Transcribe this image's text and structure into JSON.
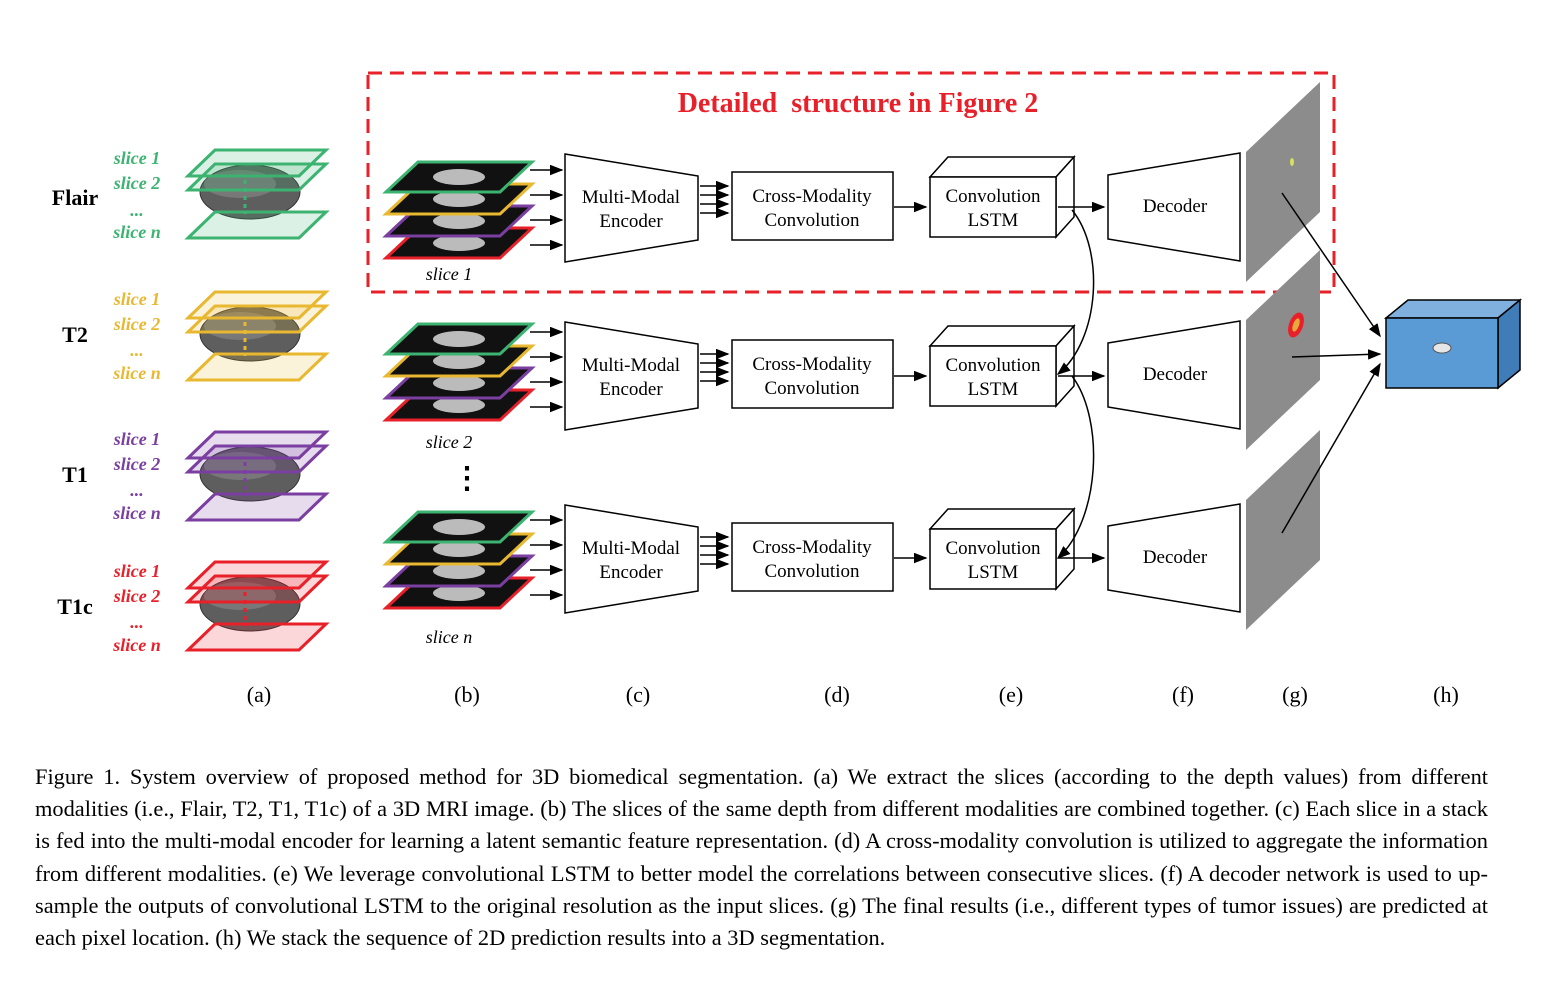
{
  "figure_title": "Detailed  structure in Figure 2",
  "modalities": [
    {
      "name": "Flair",
      "color": "#3cb371",
      "slices": [
        "slice 1",
        "slice 2",
        "...",
        "slice n"
      ]
    },
    {
      "name": "T2",
      "color": "#e8b830",
      "slices": [
        "slice 1",
        "slice 2",
        "...",
        "slice n"
      ]
    },
    {
      "name": "T1",
      "color": "#7a3fa0",
      "slices": [
        "slice 1",
        "slice 2",
        "...",
        "slice n"
      ]
    },
    {
      "name": "T1c",
      "color": "#e8202a",
      "slices": [
        "slice 1",
        "slice 2",
        "...",
        "slice n"
      ]
    }
  ],
  "stack_captions": [
    "slice 1",
    "slice 2",
    "slice n"
  ],
  "stack_ellipsis": "⋮",
  "encoder_label": [
    "Multi-Modal",
    "Encoder"
  ],
  "crossmod_label": [
    "Cross-Modality",
    "Convolution"
  ],
  "lstm_label": [
    "Convolution",
    "LSTM"
  ],
  "decoder_label": "Decoder",
  "panel_labels": [
    "(a)",
    "(b)",
    "(c)",
    "(d)",
    "(e)",
    "(f)",
    "(g)",
    "(h)"
  ],
  "colors": {
    "dash_box": "#e8202a",
    "cube": "#5b9bd5",
    "pred_plane": "#8c8c8c"
  },
  "caption": "Figure 1.  System overview of proposed method for 3D biomedical segmentation. (a) We extract the slices (according to the depth values) from different modalities (i.e., Flair, T2, T1, T1c) of a 3D MRI image.  (b) The slices of the same depth from different modalities are combined together. (c) Each slice in a stack is fed into the multi-modal encoder for learning a latent semantic feature representation. (d) A cross-modality convolution is utilized to aggregate the information from different modalities.  (e) We leverage convolutional LSTM to better model the correlations between consecutive slices.  (f) A decoder network is used to up-sample the outputs of convolutional LSTM to the original resolution as the input slices.  (g) The final results (i.e., different types of tumor issues) are predicted at each pixel location. (h) We stack the sequence of 2D prediction results into a 3D segmentation."
}
